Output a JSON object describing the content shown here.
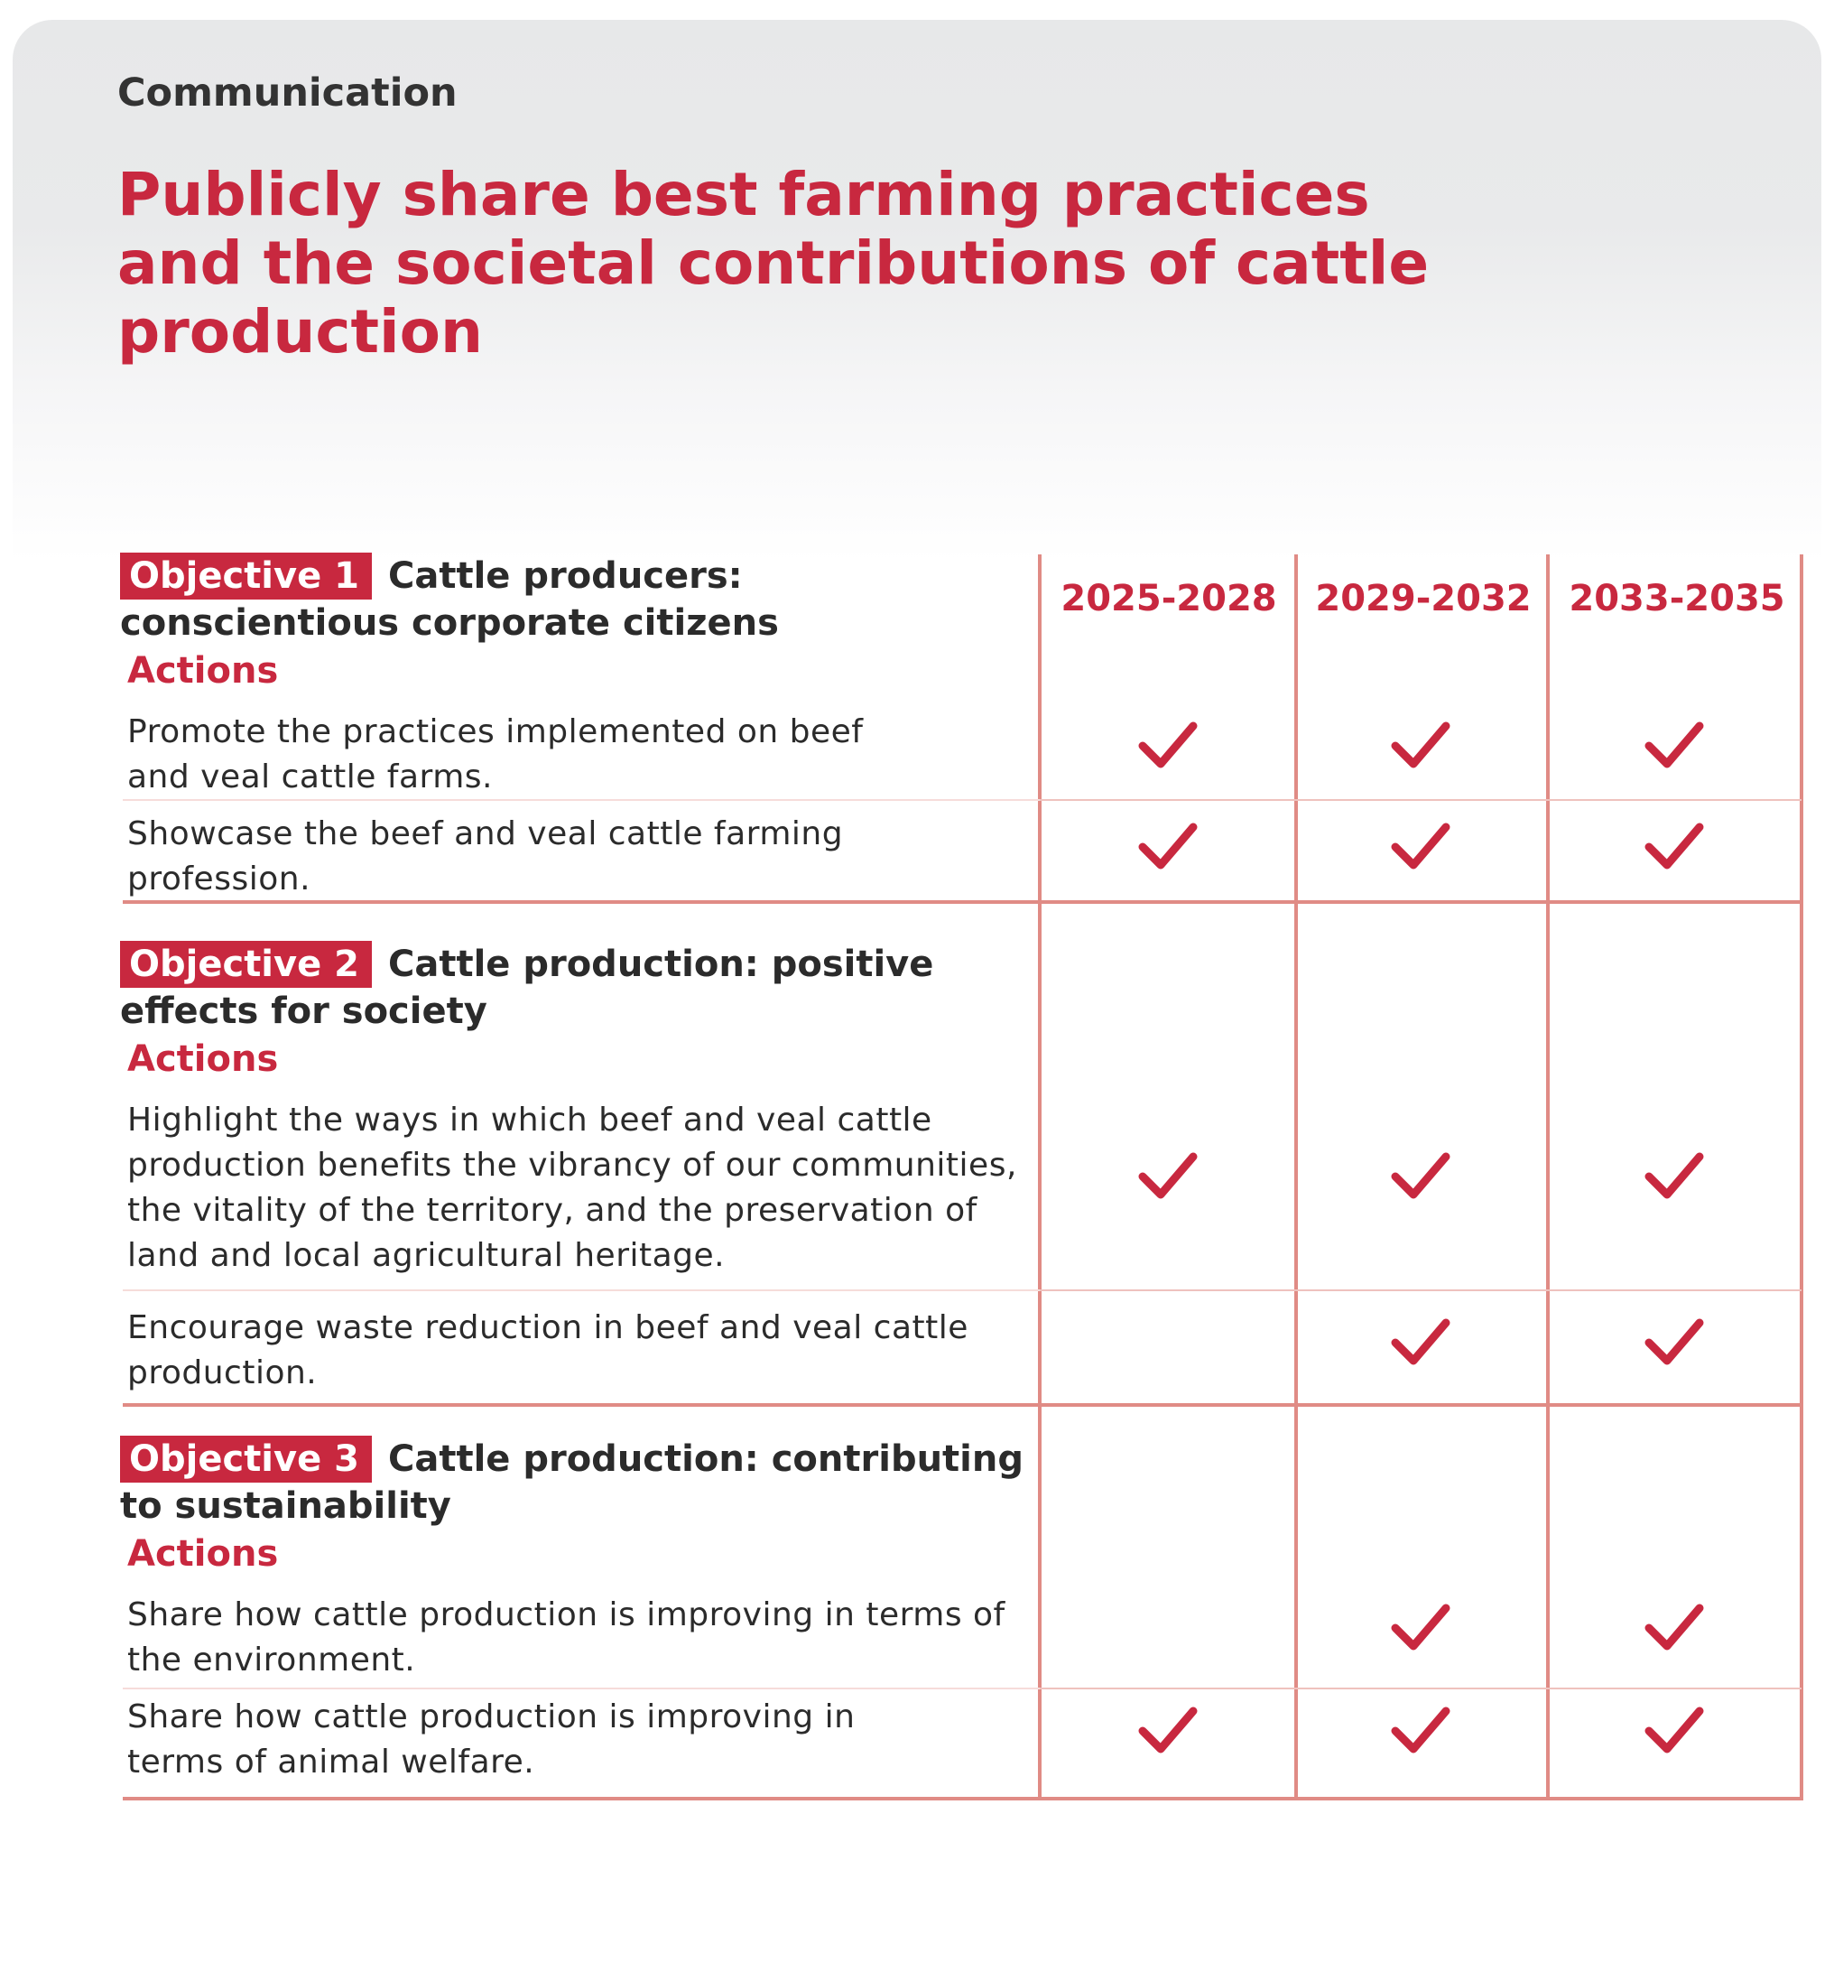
{
  "section_label": "Communication",
  "title": "Publicly share best farming practices and the societal contributions of cattle production",
  "periods": [
    "2025-2028",
    "2029-2032",
    "2033-2035"
  ],
  "actions_label": "Actions",
  "objectives": [
    {
      "badge": "Objective 1",
      "heading": "Cattle producers: conscientious corporate citizens",
      "actions": [
        {
          "text": "Promote the practices implemented on beef and veal cattle farms.",
          "checks": [
            true,
            true,
            true
          ]
        },
        {
          "text": "Showcase the beef and veal cattle farming profession.",
          "checks": [
            true,
            true,
            true
          ]
        }
      ]
    },
    {
      "badge": "Objective 2",
      "heading": "Cattle production: positive effects for society",
      "actions": [
        {
          "text": "Highlight the ways in which beef and veal cattle production benefits the vibrancy of our communities, the vitality of the territory, and the preservation of land and local agricultural heritage.",
          "checks": [
            true,
            true,
            true
          ]
        },
        {
          "text": "Encourage waste reduction in beef and veal cattle production.",
          "checks": [
            false,
            true,
            true
          ]
        }
      ]
    },
    {
      "badge": "Objective 3",
      "heading": "Cattle production: contributing to sustainability",
      "actions": [
        {
          "text": "Share how cattle production is improving in terms of the environment.",
          "checks": [
            false,
            true,
            true
          ]
        },
        {
          "text": "Share how cattle production is improving in terms of animal welfare.",
          "checks": [
            true,
            true,
            true
          ]
        }
      ]
    }
  ],
  "colors": {
    "accent": "#c8283f",
    "grid": "#e08b85",
    "header_bg": "#e8e9ea"
  }
}
